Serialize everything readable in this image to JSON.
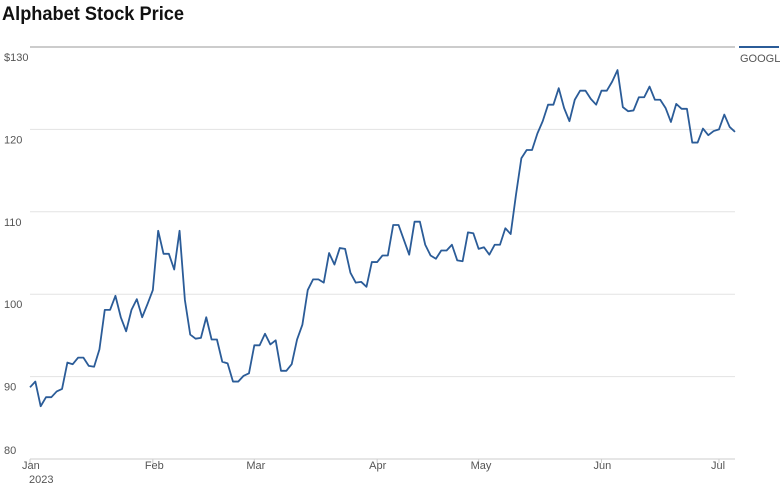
{
  "chart_data": {
    "type": "line",
    "title": "Alphabet Stock Price",
    "categories": [
      "Jan",
      null,
      null,
      null,
      null,
      null,
      null,
      null,
      null,
      null,
      null,
      null,
      null,
      null,
      null,
      null,
      null,
      null,
      null,
      null,
      null,
      null,
      null,
      "Feb",
      null,
      null,
      null,
      null,
      null,
      null,
      null,
      null,
      null,
      null,
      null,
      null,
      null,
      null,
      null,
      null,
      null,
      null,
      "Mar",
      null,
      null,
      null,
      null,
      null,
      null,
      null,
      null,
      null,
      null,
      null,
      null,
      null,
      null,
      null,
      null,
      null,
      null,
      null,
      null,
      null,
      null,
      "Apr",
      null,
      null,
      null,
      null,
      null,
      null,
      null,
      null,
      null,
      null,
      null,
      null,
      null,
      null,
      null,
      null,
      null,
      null,
      "May",
      null,
      null,
      null,
      null,
      null,
      null,
      null,
      null,
      null,
      null,
      null,
      null,
      null,
      null,
      null,
      null,
      null,
      null,
      null,
      null,
      null,
      null,
      "Jun",
      null,
      null,
      null,
      null,
      null,
      null,
      null,
      null,
      null,
      null,
      null,
      null,
      null,
      null,
      null,
      null,
      null,
      null,
      null,
      null,
      null,
      "Jul",
      null,
      null,
      null
    ],
    "x_year": "2023",
    "series": [
      {
        "name": "GOOGL",
        "color": "#2b5c98",
        "values": [
          88.7,
          89.4,
          86.4,
          87.5,
          87.5,
          88.2,
          88.5,
          91.7,
          91.5,
          92.3,
          92.3,
          91.3,
          91.2,
          93.3,
          98.1,
          98.1,
          99.8,
          97.2,
          95.5,
          98.1,
          99.4,
          97.2,
          98.8,
          100.5,
          107.7,
          104.9,
          104.9,
          103.0,
          107.7,
          99.3,
          95.1,
          94.6,
          94.7,
          97.2,
          94.5,
          94.5,
          91.8,
          91.6,
          89.4,
          89.4,
          90.1,
          90.4,
          93.8,
          93.8,
          95.2,
          93.9,
          94.4,
          90.7,
          90.7,
          91.5,
          94.5,
          96.3,
          100.5,
          101.8,
          101.8,
          101.4,
          105.0,
          103.6,
          105.6,
          105.5,
          102.6,
          101.4,
          101.5,
          100.9,
          103.9,
          103.9,
          104.7,
          104.7,
          108.4,
          108.4,
          106.6,
          104.8,
          108.8,
          108.8,
          106.0,
          104.7,
          104.3,
          105.3,
          105.3,
          106.0,
          104.1,
          104.0,
          107.5,
          107.4,
          105.5,
          105.7,
          104.8,
          106.0,
          106.0,
          108.0,
          107.3,
          112.1,
          116.5,
          117.5,
          117.5,
          119.5,
          121.0,
          123.0,
          123.0,
          125.0,
          122.6,
          121.0,
          123.6,
          124.7,
          124.7,
          123.7,
          123.0,
          124.7,
          124.7,
          125.8,
          127.2,
          122.7,
          122.2,
          122.3,
          123.9,
          123.9,
          125.2,
          123.6,
          123.6,
          122.6,
          120.9,
          123.1,
          122.5,
          122.5,
          118.4,
          118.4,
          120.1,
          119.3,
          119.8,
          120.0,
          121.8,
          120.3,
          119.7
        ]
      }
    ],
    "ylim": [
      80,
      130
    ],
    "yticks": [
      {
        "value": 130,
        "label": "$130"
      },
      120,
      110,
      100,
      90,
      80
    ],
    "grid": true,
    "legend": "top-right"
  }
}
